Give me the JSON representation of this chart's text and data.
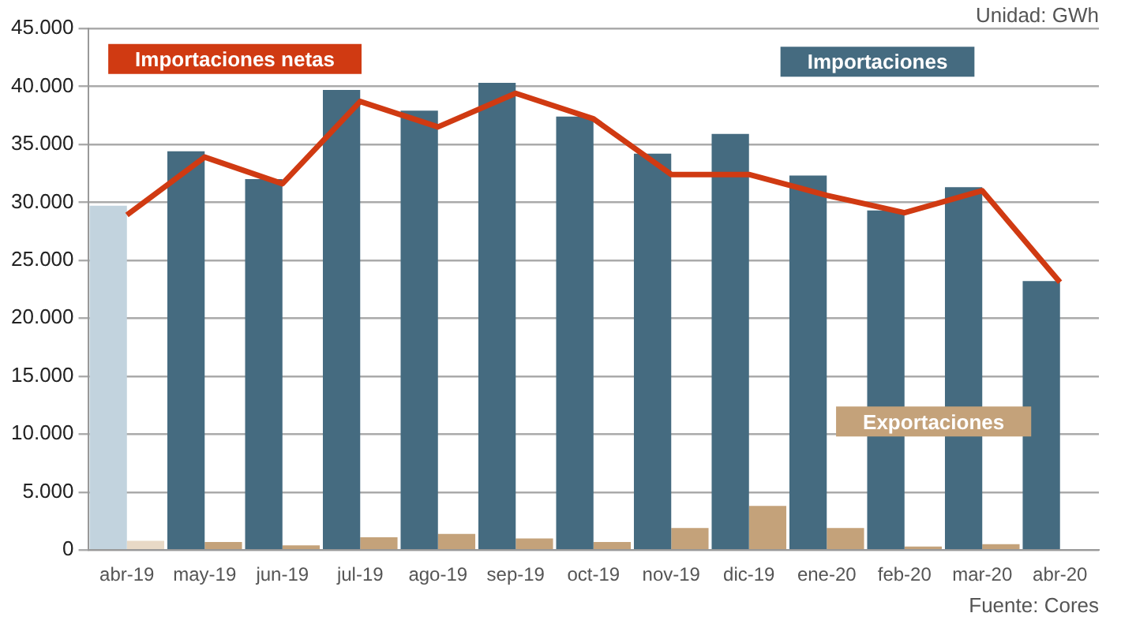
{
  "chart_data": {
    "type": "bar",
    "categories": [
      "abr-19",
      "may-19",
      "jun-19",
      "jul-19",
      "ago-19",
      "sep-19",
      "oct-19",
      "nov-19",
      "dic-19",
      "ene-20",
      "feb-20",
      "mar-20",
      "abr-20"
    ],
    "series": [
      {
        "name": "Importaciones",
        "color": "#456b80",
        "colors": [
          "#c2d3de",
          "#456b80",
          "#456b80",
          "#456b80",
          "#456b80",
          "#456b80",
          "#456b80",
          "#456b80",
          "#456b80",
          "#456b80",
          "#456b80",
          "#456b80",
          "#456b80"
        ],
        "values": [
          29700,
          34400,
          32000,
          39700,
          37900,
          40300,
          37400,
          34200,
          35900,
          32300,
          29300,
          31300,
          23200
        ]
      },
      {
        "name": "Exportaciones",
        "color": "#c4a27a",
        "colors": [
          "#e8d9c6",
          "#c4a27a",
          "#c4a27a",
          "#c4a27a",
          "#c4a27a",
          "#c4a27a",
          "#c4a27a",
          "#c4a27a",
          "#c4a27a",
          "#c4a27a",
          "#c4a27a",
          "#c4a27a",
          "#c4a27a"
        ],
        "values": [
          800,
          700,
          400,
          1100,
          1400,
          1000,
          700,
          1900,
          3800,
          1900,
          300,
          500,
          0
        ]
      },
      {
        "name": "Importaciones netas",
        "type": "line",
        "color": "#d03a12",
        "values": [
          28900,
          33900,
          31600,
          38700,
          36500,
          39400,
          37200,
          32400,
          32400,
          30600,
          29100,
          31000,
          23100
        ]
      }
    ],
    "ylim": [
      0,
      45000
    ],
    "yticks": [
      {
        "value": 0,
        "label": "0"
      },
      {
        "value": 5000,
        "label": "5.000"
      },
      {
        "value": 10000,
        "label": "10.000"
      },
      {
        "value": 15000,
        "label": "15.000"
      },
      {
        "value": 20000,
        "label": "20.000"
      },
      {
        "value": 25000,
        "label": "25.000"
      },
      {
        "value": 30000,
        "label": "30.000"
      },
      {
        "value": 35000,
        "label": "35.000"
      },
      {
        "value": 40000,
        "label": "40.000"
      },
      {
        "value": 45000,
        "label": "45.000"
      }
    ],
    "grid": "y",
    "legend": false,
    "marker": "none",
    "line_style": "solid",
    "annotations": [
      "Unidad: GWh",
      "Fuente: Cores"
    ]
  }
}
